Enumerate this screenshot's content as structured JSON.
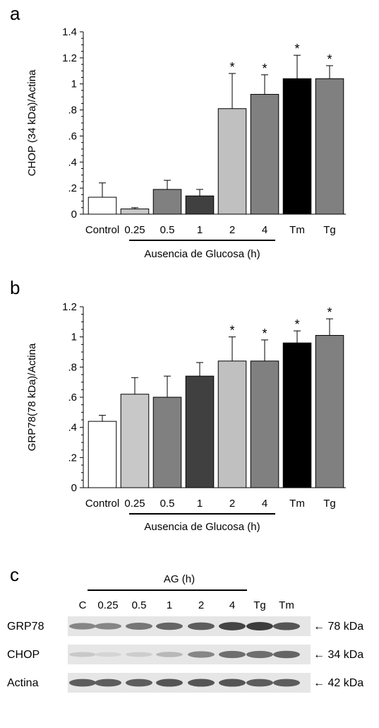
{
  "chart_data": [
    {
      "panel": "a",
      "type": "bar",
      "ylabel": "CHOP (34 kDa)/Actina",
      "ylim": [
        0,
        1.4
      ],
      "yticks": [
        "0",
        ".2",
        ".4",
        ".6",
        ".8",
        "1",
        "1.2",
        "1.4"
      ],
      "categories": [
        "Control",
        "0.25",
        "0.5",
        "1",
        "2",
        "4",
        "Tm",
        "Tg"
      ],
      "values": [
        0.13,
        0.04,
        0.19,
        0.14,
        0.81,
        0.92,
        1.04,
        1.04
      ],
      "errors": [
        0.11,
        0.01,
        0.07,
        0.05,
        0.27,
        0.15,
        0.18,
        0.1
      ],
      "significant": [
        false,
        false,
        false,
        false,
        true,
        true,
        true,
        true
      ],
      "star_symbol": "*",
      "colors": [
        "#ffffff",
        "#c8c8c8",
        "#808080",
        "#404040",
        "#c0c0c0",
        "#808080",
        "#000000",
        "#808080"
      ],
      "group_label": "Ausencia de Glucosa (h)",
      "grid": false
    },
    {
      "panel": "b",
      "type": "bar",
      "ylabel": "GRP78(78 kDa)/Actina",
      "ylim": [
        0,
        1.2
      ],
      "yticks": [
        "0",
        ".2",
        ".4",
        ".6",
        ".8",
        "1",
        "1.2"
      ],
      "categories": [
        "Control",
        "0.25",
        "0.5",
        "1",
        "2",
        "4",
        "Tm",
        "Tg"
      ],
      "values": [
        0.44,
        0.62,
        0.6,
        0.74,
        0.84,
        0.84,
        0.96,
        1.01
      ],
      "errors": [
        0.04,
        0.11,
        0.14,
        0.09,
        0.16,
        0.14,
        0.08,
        0.11
      ],
      "significant": [
        false,
        false,
        false,
        false,
        true,
        true,
        true,
        true
      ],
      "star_symbol": "*",
      "colors": [
        "#ffffff",
        "#c8c8c8",
        "#808080",
        "#404040",
        "#c0c0c0",
        "#808080",
        "#000000",
        "#808080"
      ],
      "group_label": "Ausencia de Glucosa (h)",
      "grid": false
    }
  ],
  "blot": {
    "panel": "c",
    "group_label": "AG (h)",
    "lanes": [
      "C",
      "0.25",
      "0.5",
      "1",
      "2",
      "4",
      "Tg",
      "Tm"
    ],
    "rows": [
      {
        "name": "GRP78",
        "marker": "← 78 kDa",
        "intensity": [
          0.55,
          0.55,
          0.65,
          0.75,
          0.8,
          0.95,
          1.0,
          0.85
        ]
      },
      {
        "name": "CHOP",
        "marker": "← 34 kDa",
        "intensity": [
          0.15,
          0.08,
          0.12,
          0.25,
          0.55,
          0.7,
          0.7,
          0.75
        ]
      },
      {
        "name": "Actina",
        "marker": "← 42 kDa",
        "intensity": [
          0.8,
          0.8,
          0.8,
          0.85,
          0.85,
          0.85,
          0.8,
          0.8
        ]
      }
    ]
  }
}
